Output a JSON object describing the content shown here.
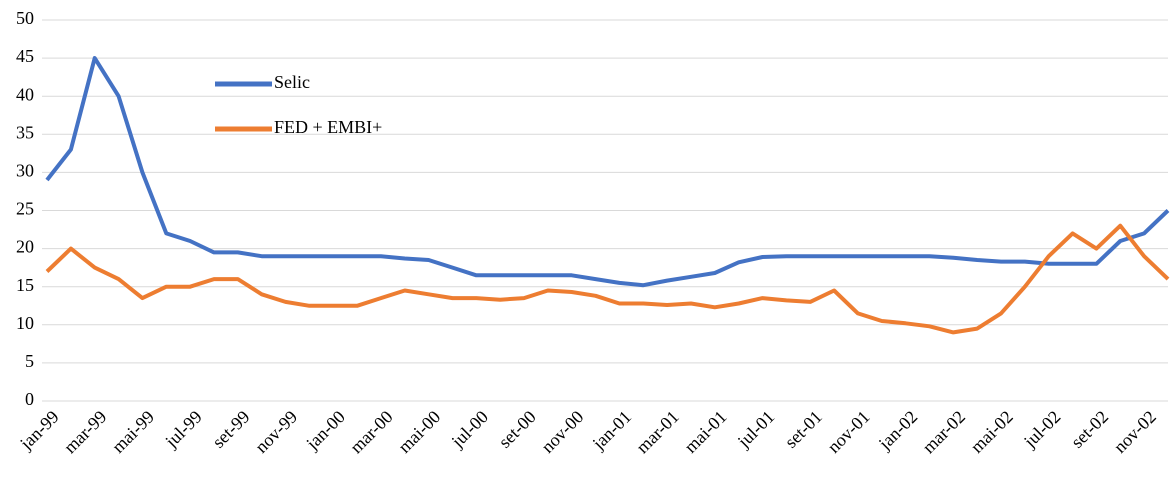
{
  "chart_data": {
    "type": "line",
    "categories": [
      "jan-99",
      null,
      "mar-99",
      null,
      "mai-99",
      null,
      "jul-99",
      null,
      "set-99",
      null,
      "nov-99",
      null,
      "jan-00",
      null,
      "mar-00",
      null,
      "mai-00",
      null,
      "jul-00",
      null,
      "set-00",
      null,
      "nov-00",
      null,
      "jan-01",
      null,
      "mar-01",
      null,
      "mai-01",
      null,
      "jul-01",
      null,
      "set-01",
      null,
      "nov-01",
      null,
      "jan-02",
      null,
      "mar-02",
      null,
      "mai-02",
      null,
      "jul-02",
      null,
      "set-02",
      null,
      "nov-02",
      null
    ],
    "series": [
      {
        "name": "Selic",
        "color": "#4472c4",
        "values": [
          29,
          33,
          45,
          40,
          30,
          22,
          21,
          19.5,
          19.5,
          19,
          19,
          19,
          19,
          19,
          19,
          18.7,
          18.5,
          17.5,
          16.5,
          16.5,
          16.5,
          16.5,
          16.5,
          16,
          15.5,
          15.2,
          15.8,
          16.3,
          16.8,
          18.2,
          18.9,
          19,
          19,
          19,
          19,
          19,
          19,
          19,
          18.8,
          18.5,
          18.3,
          18.3,
          18,
          18,
          18,
          21,
          22,
          25
        ]
      },
      {
        "name": "FED + EMBI+",
        "color": "#ed7d31",
        "values": [
          17,
          20,
          17.5,
          16,
          13.5,
          15,
          15,
          16,
          16,
          14,
          13,
          12.5,
          12.5,
          12.5,
          13.5,
          14.5,
          14,
          13.5,
          13.5,
          13.3,
          13.5,
          14.5,
          14.3,
          13.8,
          12.8,
          12.8,
          12.6,
          12.8,
          12.3,
          12.8,
          13.5,
          13.2,
          13,
          14.5,
          11.5,
          10.5,
          10.2,
          9.8,
          9,
          9.5,
          11.5,
          15,
          19,
          22,
          20,
          23,
          19,
          16
        ]
      }
    ],
    "ylim": [
      0,
      50
    ],
    "yticks": [
      0,
      5,
      10,
      15,
      20,
      25,
      30,
      35,
      40,
      45,
      50
    ],
    "grid": true
  }
}
